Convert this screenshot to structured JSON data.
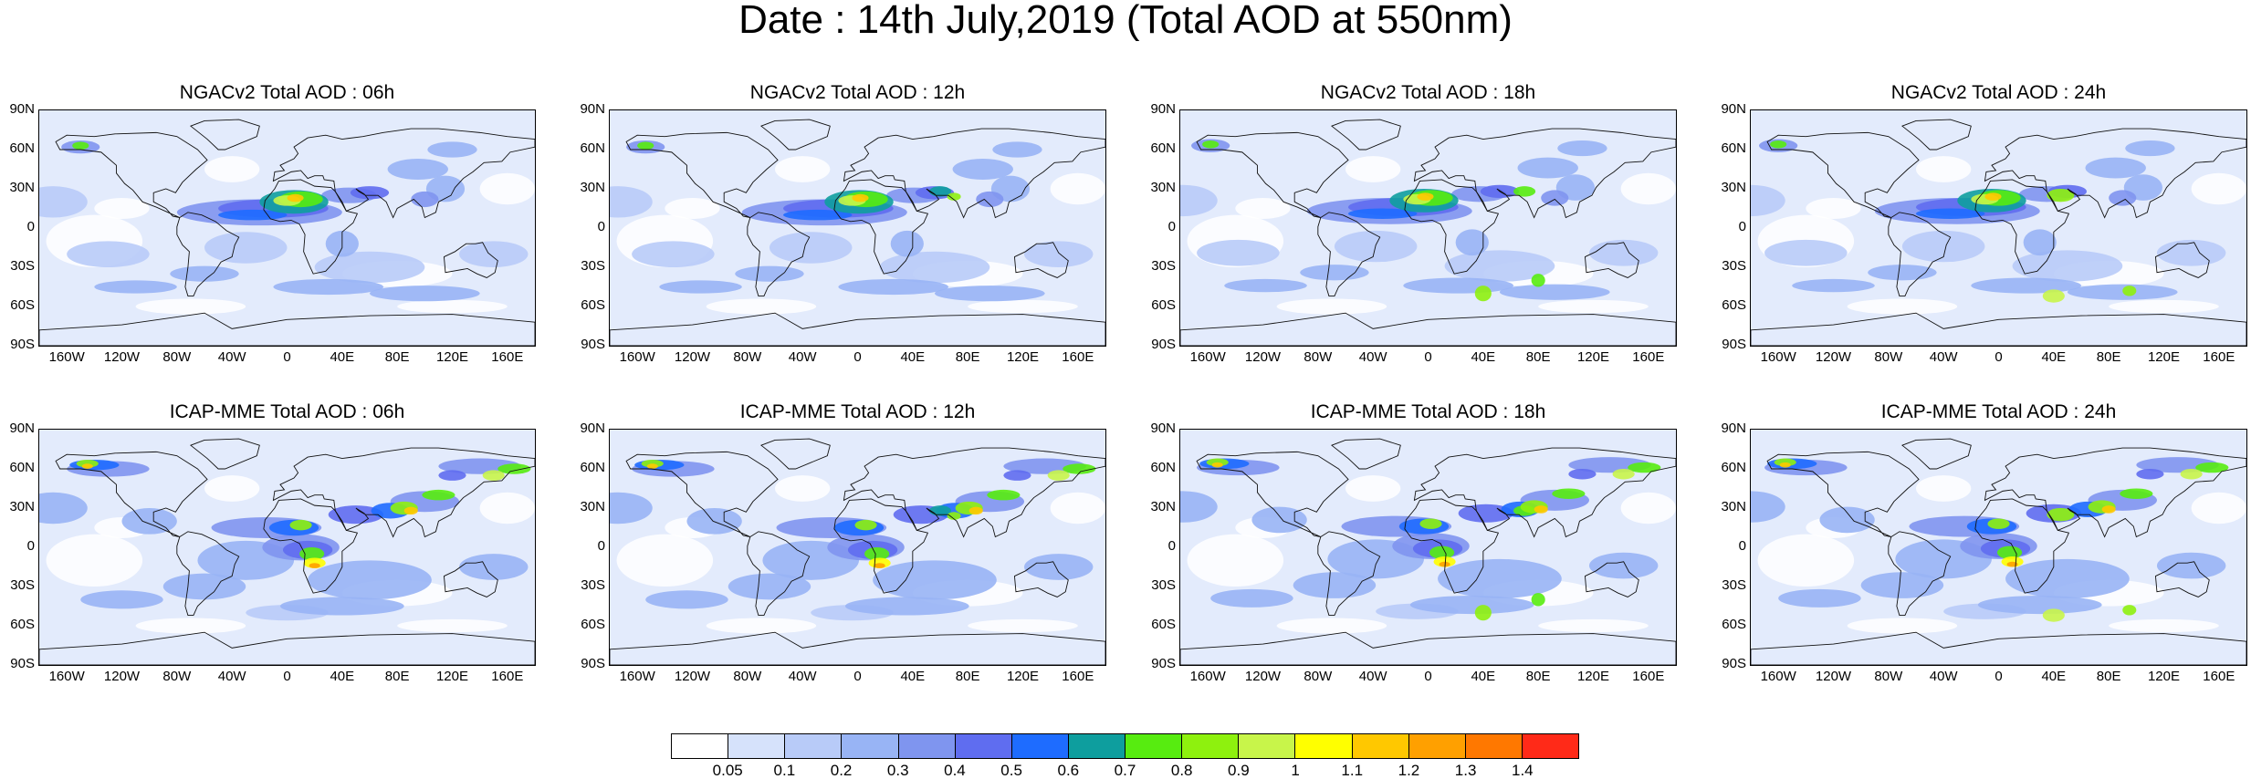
{
  "title": "Date : 14th July,2019 (Total AOD at 550nm)",
  "panels": [
    {
      "title": "NGACv2 Total AOD : 06h",
      "model": "NGACv2",
      "lead": "06h"
    },
    {
      "title": "NGACv2 Total AOD : 12h",
      "model": "NGACv2",
      "lead": "12h"
    },
    {
      "title": "NGACv2 Total AOD : 18h",
      "model": "NGACv2",
      "lead": "18h"
    },
    {
      "title": "NGACv2 Total AOD : 24h",
      "model": "NGACv2",
      "lead": "24h"
    },
    {
      "title": "ICAP-MME Total AOD : 06h",
      "model": "ICAP-MME",
      "lead": "06h"
    },
    {
      "title": "ICAP-MME Total AOD : 12h",
      "model": "ICAP-MME",
      "lead": "12h"
    },
    {
      "title": "ICAP-MME Total AOD : 18h",
      "model": "ICAP-MME",
      "lead": "18h"
    },
    {
      "title": "ICAP-MME Total AOD : 24h",
      "model": "ICAP-MME",
      "lead": "24h"
    }
  ],
  "lat_ticks": [
    "90N",
    "60N",
    "30N",
    "0",
    "30S",
    "60S",
    "90S"
  ],
  "lon_ticks": [
    "160W",
    "120W",
    "80W",
    "40W",
    "0",
    "40E",
    "80E",
    "120E",
    "160E"
  ],
  "colorbar": {
    "labels": [
      "0.05",
      "0.1",
      "0.2",
      "0.3",
      "0.4",
      "0.5",
      "0.6",
      "0.7",
      "0.8",
      "0.9",
      "1",
      "1.1",
      "1.2",
      "1.3",
      "1.4"
    ],
    "colors": [
      "#ffffff",
      "#d6e2fb",
      "#b8cbf8",
      "#98b4f5",
      "#7f95ef",
      "#5f6df0",
      "#1e6cff",
      "#0e9e9e",
      "#57ec10",
      "#8ef10e",
      "#c8f54a",
      "#ffff00",
      "#ffc800",
      "#ffa000",
      "#ff7800",
      "#ff2a18"
    ]
  }
}
